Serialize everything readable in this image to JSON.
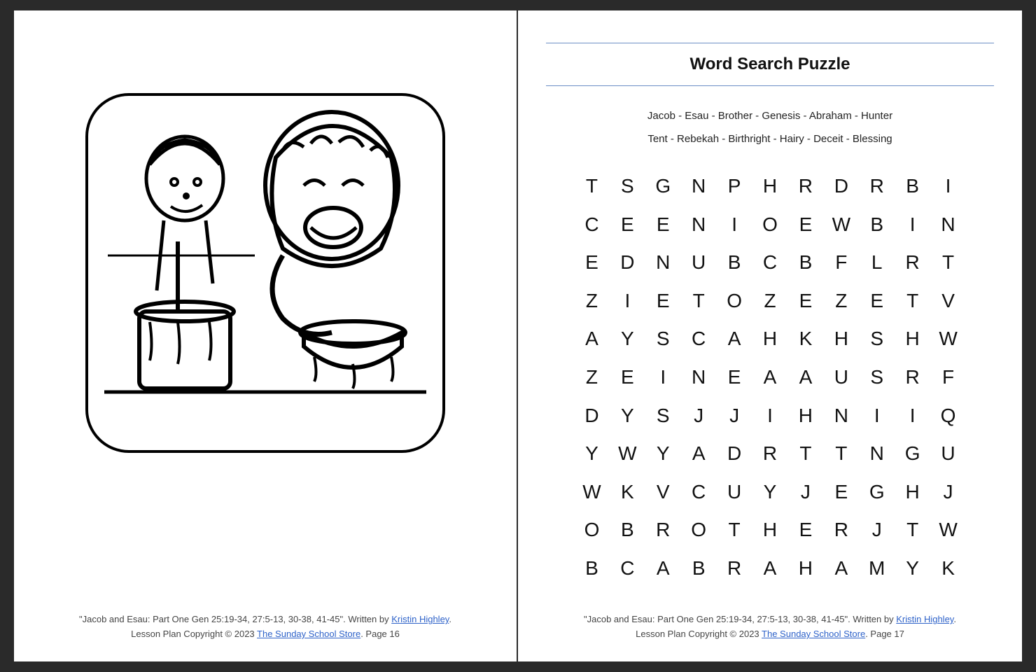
{
  "colors": {
    "page_bg": "#ffffff",
    "outer_bg": "#2a2a2a",
    "rule_line": "#6b8ec5",
    "link": "#2e62c9",
    "text": "#111111"
  },
  "left_page": {
    "image_alt": "Coloring page line art of Jacob stirring a pot of stew while Esau eats eagerly",
    "footer": {
      "line1_prefix": "\"Jacob and Esau: Part One Gen 25:19-34, 27:5-13, 30-38, 41-45\".  Written by ",
      "author": "Kristin Highley",
      "line1_suffix": ".",
      "line2_prefix": "Lesson Plan Copyright © 2023 ",
      "store": "The Sunday School Store",
      "line2_suffix": ". Page 16"
    }
  },
  "right_page": {
    "title": "Word Search Puzzle",
    "words_line1": "Jacob - Esau - Brother - Genesis - Abraham - Hunter",
    "words_line2": "Tent - Rebekah - Birthright - Hairy - Deceit - Blessing",
    "grid": [
      [
        "T",
        "S",
        "G",
        "N",
        "P",
        "H",
        "R",
        "D",
        "R",
        "B",
        "I"
      ],
      [
        "C",
        "E",
        "E",
        "N",
        "I",
        "O",
        "E",
        "W",
        "B",
        "I",
        "N"
      ],
      [
        "E",
        "D",
        "N",
        "U",
        "B",
        "C",
        "B",
        "F",
        "L",
        "R",
        "T"
      ],
      [
        "Z",
        "I",
        "E",
        "T",
        "O",
        "Z",
        "E",
        "Z",
        "E",
        "T",
        "V"
      ],
      [
        "A",
        "Y",
        "S",
        "C",
        "A",
        "H",
        "K",
        "H",
        "S",
        "H",
        "W"
      ],
      [
        "Z",
        "E",
        "I",
        "N",
        "E",
        "A",
        "A",
        "U",
        "S",
        "R",
        "F"
      ],
      [
        "D",
        "Y",
        "S",
        "J",
        "J",
        "I",
        "H",
        "N",
        "I",
        "I",
        "Q"
      ],
      [
        "Y",
        "W",
        "Y",
        "A",
        "D",
        "R",
        "T",
        "T",
        "N",
        "G",
        "U"
      ],
      [
        "W",
        "K",
        "V",
        "C",
        "U",
        "Y",
        "J",
        "E",
        "G",
        "H",
        "J"
      ],
      [
        "O",
        "B",
        "R",
        "O",
        "T",
        "H",
        "E",
        "R",
        "J",
        "T",
        "W"
      ],
      [
        "B",
        "C",
        "A",
        "B",
        "R",
        "A",
        "H",
        "A",
        "M",
        "Y",
        "K"
      ]
    ],
    "grid_cols": 11,
    "grid_rows": 11,
    "cell_fontsize": 28,
    "footer": {
      "line1_prefix": "\"Jacob and Esau: Part One Gen 25:19-34, 27:5-13, 30-38, 41-45\".  Written by ",
      "author": "Kristin Highley",
      "line1_suffix": ".",
      "line2_prefix": "Lesson Plan Copyright © 2023 ",
      "store": "The Sunday School Store",
      "line2_suffix": ". Page 17"
    }
  }
}
